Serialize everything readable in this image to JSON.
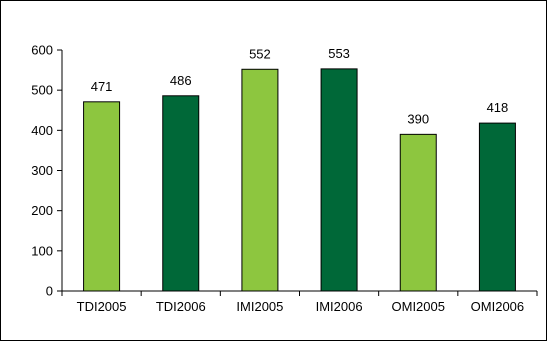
{
  "chart_data": {
    "type": "bar",
    "title": "",
    "xlabel": "",
    "ylabel": "",
    "categories": [
      "TDI2005",
      "TDI2006",
      "IMI2005",
      "IMI2006",
      "OMI2005",
      "OMI2006"
    ],
    "values": [
      471,
      486,
      552,
      553,
      390,
      418
    ],
    "data_labels": [
      "471",
      "486",
      "552",
      "553",
      "390",
      "418"
    ],
    "bar_colors": [
      "#8dc63f",
      "#006838",
      "#8dc63f",
      "#006838",
      "#8dc63f",
      "#006838"
    ],
    "ylim": [
      0,
      600
    ],
    "yticks": [
      0,
      100,
      200,
      300,
      400,
      500,
      600
    ],
    "ytick_labels": [
      "0",
      "100",
      "200",
      "300",
      "400",
      "500",
      "600"
    ],
    "grid": false,
    "legend": "none"
  }
}
